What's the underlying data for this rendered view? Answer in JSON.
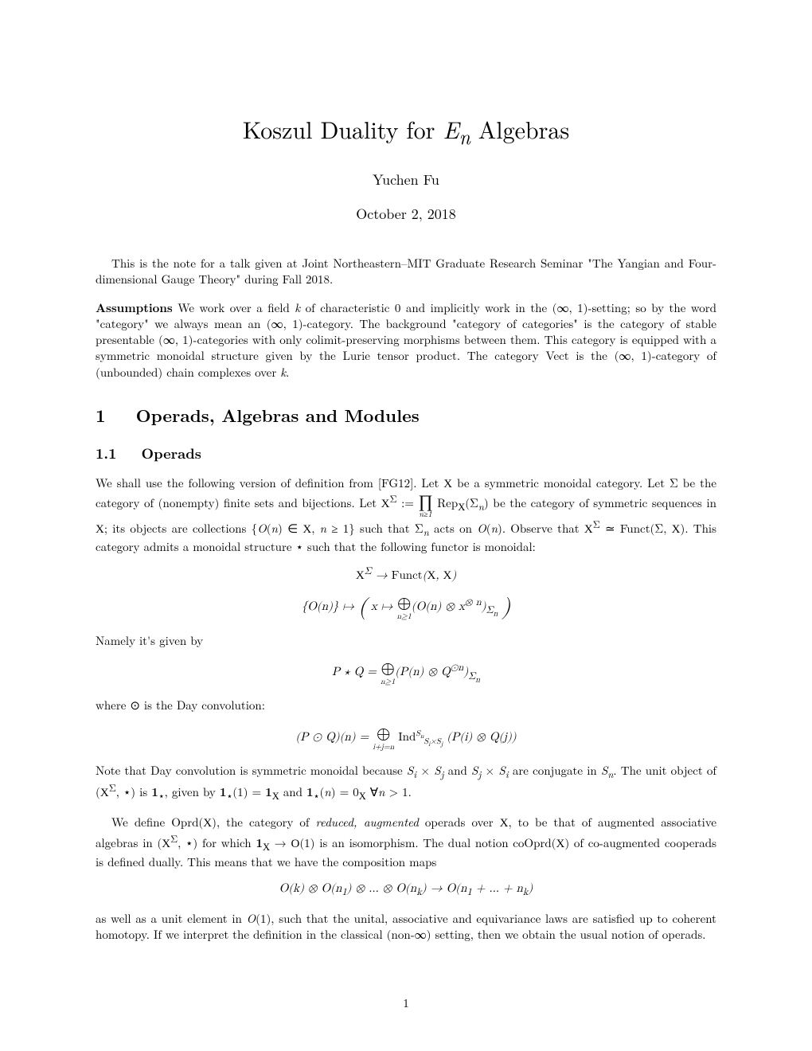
{
  "title_html": "Koszul Duality for <em>E<sub>n</sub></em> Algebras",
  "author": "Yuchen Fu",
  "date": "October 2, 2018",
  "intro_para": "This is the note for a talk given at Joint Northeastern–MIT Graduate Research Seminar \"The Yangian and Four-dimensional Gauge Theory\" during Fall 2018.",
  "assumptions_label": "Assumptions",
  "assumptions_text_html": " We work over a field <em>k</em> of characteristic 0 and implicitly work in the (∞, 1)-setting; so by the word \"category\" we always mean an (∞, 1)-category. The background \"category of categories\" is the category of stable presentable (∞, 1)-categories with only colimit-preserving morphisms between them. This category is equipped with a symmetric monoidal structure given by the Lurie tensor product. The category Vect is the (∞, 1)-category of (unbounded) chain complexes over <em>k</em>.",
  "section1_number": "1",
  "section1_title": "Operads, Algebras and Modules",
  "subsection11_number": "1.1",
  "subsection11_title": "Operads",
  "para_operads_1_html": "We shall use the following version of definition from [FG12]. Let <span class='cal'>X</span> be a symmetric monoidal category. Let Σ be the category of (nonempty) finite sets and bijections. Let <span class='cal'>X</span><sup>Σ</sup> := <span class='stack'><span class='bigop'>∏</span><span class='limit'>n≥1</span></span> Rep<sub><span class='cal'>X</span></sub>(Σ<sub><em>n</em></sub>) be the category of symmetric sequences in <span class='cal'>X</span>; its objects are collections {<em>O</em>(<em>n</em>) ∈ <span class='cal'>X</span>, <em>n</em> ≥ 1} such that Σ<sub><em>n</em></sub> acts on <em>O</em>(<em>n</em>). Observe that <span class='cal'>X</span><sup>Σ</sup> ≃ Funct(Σ, <span class='cal'>X</span>). This category admits a monoidal structure ⋆ such that the following functor is monoidal:",
  "display1_html": "<span class='cal'>X</span><sup>Σ</sup> → <span class='rom'>Funct</span>(<span class='cal'>X</span>, <span class='cal'>X</span>)",
  "display2_html": "{<em>O</em>(<em>n</em>)} ↦ <span style='font-size:28px;vertical-align:middle;'>(</span> <em>x</em> ↦ <span class='stack'><span class='bigop'>⊕</span><span class='limit'>n≥1</span></span>(<em>O</em>(<em>n</em>) ⊗ <em>x</em><sup>⊗ <em>n</em></sup>)<sub>Σ<sub><em>n</em></sub></sub> <span style='font-size:28px;vertical-align:middle;'>)</span>",
  "para_namely": "Namely it's given by",
  "display3_html": "<em>P</em> ⋆ <em>Q</em> = <span class='stack'><span class='bigop'>⊕</span><span class='limit'>n≥1</span></span>(<em>P</em>(<em>n</em>) ⊗ <em>Q</em><sup>⊙<em>n</em></sup>)<sub>Σ<sub><em>n</em></sub></sub>",
  "para_day": "where ⊙ is the Day convolution:",
  "display4_html": "(<em>P</em> ⊙ <em>Q</em>)(<em>n</em>) = <span class='stack'><span class='bigop'>⊕</span><span class='limit'>i+j=n</span></span> <span class='rom'>Ind</span><span class='sup'><em>S<sub>n</sub></em></span><span class='sub'><em>S<sub>i</sub></em>×<em>S<sub>j</sub></em></span> (<em>P</em>(<em>i</em>) ⊗ <em>Q</em>(<em>j</em>))",
  "para_dayconv_html": "Note that Day convolution is symmetric monoidal because <em>S<sub>i</sub></em> × <em>S<sub>j</sub></em> and <em>S<sub>j</sub></em> × <em>S<sub>i</sub></em> are conjugate in <em>S<sub>n</sub></em>. The unit object of (<span class='cal'>X</span><sup>Σ</sup>, ⋆) is <span class='bold1'>1</span><sub>⋆</sub>, given by <span class='bold1'>1</span><sub>⋆</sub>(1) = <span class='bold1'>1</span><sub><span class='cal'>X</span></sub> and <span class='bold1'>1</span><sub>⋆</sub>(<em>n</em>) = 0<sub><span class='cal'>X</span></sub> ∀<em>n</em> &gt; 1.",
  "para_oprd_html": "We define Oprd(<span class='cal'>X</span>), the category of <em>reduced, augmented</em> operads over <span class='cal'>X</span>, to be that of augmented associative algebras in (<span class='cal'>X</span><sup>Σ</sup>, ⋆) for which <span class='bold1'>1</span><sub><span class='cal'>X</span></sub> → <span class='cal'>O</span>(1) is an isomorphism. The dual notion coOprd(<span class='cal'>X</span>) of co-augmented cooperads is defined dually. This means that we have the composition maps",
  "display5_html": "<em>O</em>(<em>k</em>) ⊗ <em>O</em>(<em>n</em><sub>1</sub>) ⊗ … ⊗ <em>O</em>(<em>n<sub>k</sub></em>) → <em>O</em>(<em>n</em><sub>1</sub> + … + <em>n<sub>k</sub></em>)",
  "para_final_html": "as well as a unit element in <em>O</em>(1), such that the unital, associative and equivariance laws are satisfied up to coherent homotopy. If we interpret the definition in the classical (non-∞) setting, then we obtain the usual notion of operads.",
  "page_number": "1"
}
